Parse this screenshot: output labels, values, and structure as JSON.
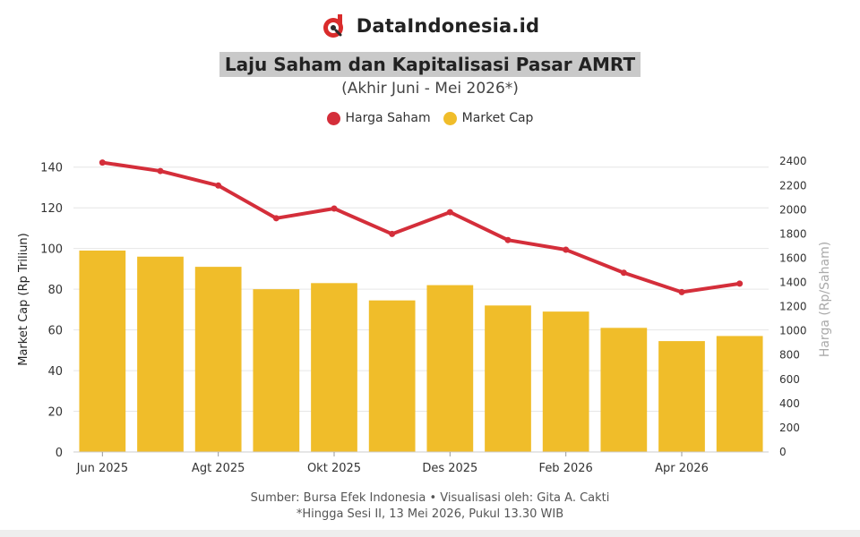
{
  "brand": {
    "name": "DataIndonesia.id",
    "logo_icon": "datainndonesia-logo-icon",
    "logo_color": "#d92b2b"
  },
  "header": {
    "title": "Laju Saham dan Kapitalisasi Pasar AMRT",
    "subtitle": "(Akhir Juni - Mei 2026*)"
  },
  "colors": {
    "line": "#d42e3a",
    "bar": "#f0bd2a",
    "grid": "#e6e6e6"
  },
  "chart_data": {
    "type": "bar",
    "categories": [
      "Jun 2025",
      "Jul 2025",
      "Agt 2025",
      "Sep 2025",
      "Okt 2025",
      "Nov 2025",
      "Des 2025",
      "Jan 2026",
      "Feb 2026",
      "Mar 2026",
      "Apr 2026",
      "Mei 2026"
    ],
    "x_tick_labels": [
      "Jun 2025",
      "Agt 2025",
      "Okt 2025",
      "Des 2025",
      "Feb 2026",
      "Apr 2026"
    ],
    "series": [
      {
        "name": "Market Cap",
        "type": "bar",
        "axis": "left",
        "values": [
          99,
          96,
          91,
          80,
          83,
          74.5,
          82,
          72,
          69,
          61,
          54.5,
          57
        ]
      },
      {
        "name": "Harga Saham",
        "type": "line",
        "axis": "right",
        "values": [
          2390,
          2320,
          2200,
          1930,
          2010,
          1800,
          1980,
          1750,
          1670,
          1480,
          1320,
          1390
        ]
      }
    ],
    "ylabel": "Market Cap (Rp Triliun)",
    "ylabel_right": "Harga (Rp/Saham)",
    "ylim": [
      0,
      150
    ],
    "ylim_right": [
      0,
      2520
    ],
    "yticks": [
      0,
      20,
      40,
      60,
      80,
      100,
      120,
      140
    ],
    "yticks_right": [
      0,
      200,
      400,
      600,
      800,
      1000,
      1200,
      1400,
      1600,
      1800,
      2000,
      2200,
      2400
    ],
    "grid": true,
    "legend_position": "top-center"
  },
  "footer": {
    "source": "Sumber: Bursa Efek Indonesia • Visualisasi oleh: Gita A. Cakti",
    "note": "*Hingga Sesi II, 13 Mei 2026, Pukul 13.30 WIB"
  }
}
